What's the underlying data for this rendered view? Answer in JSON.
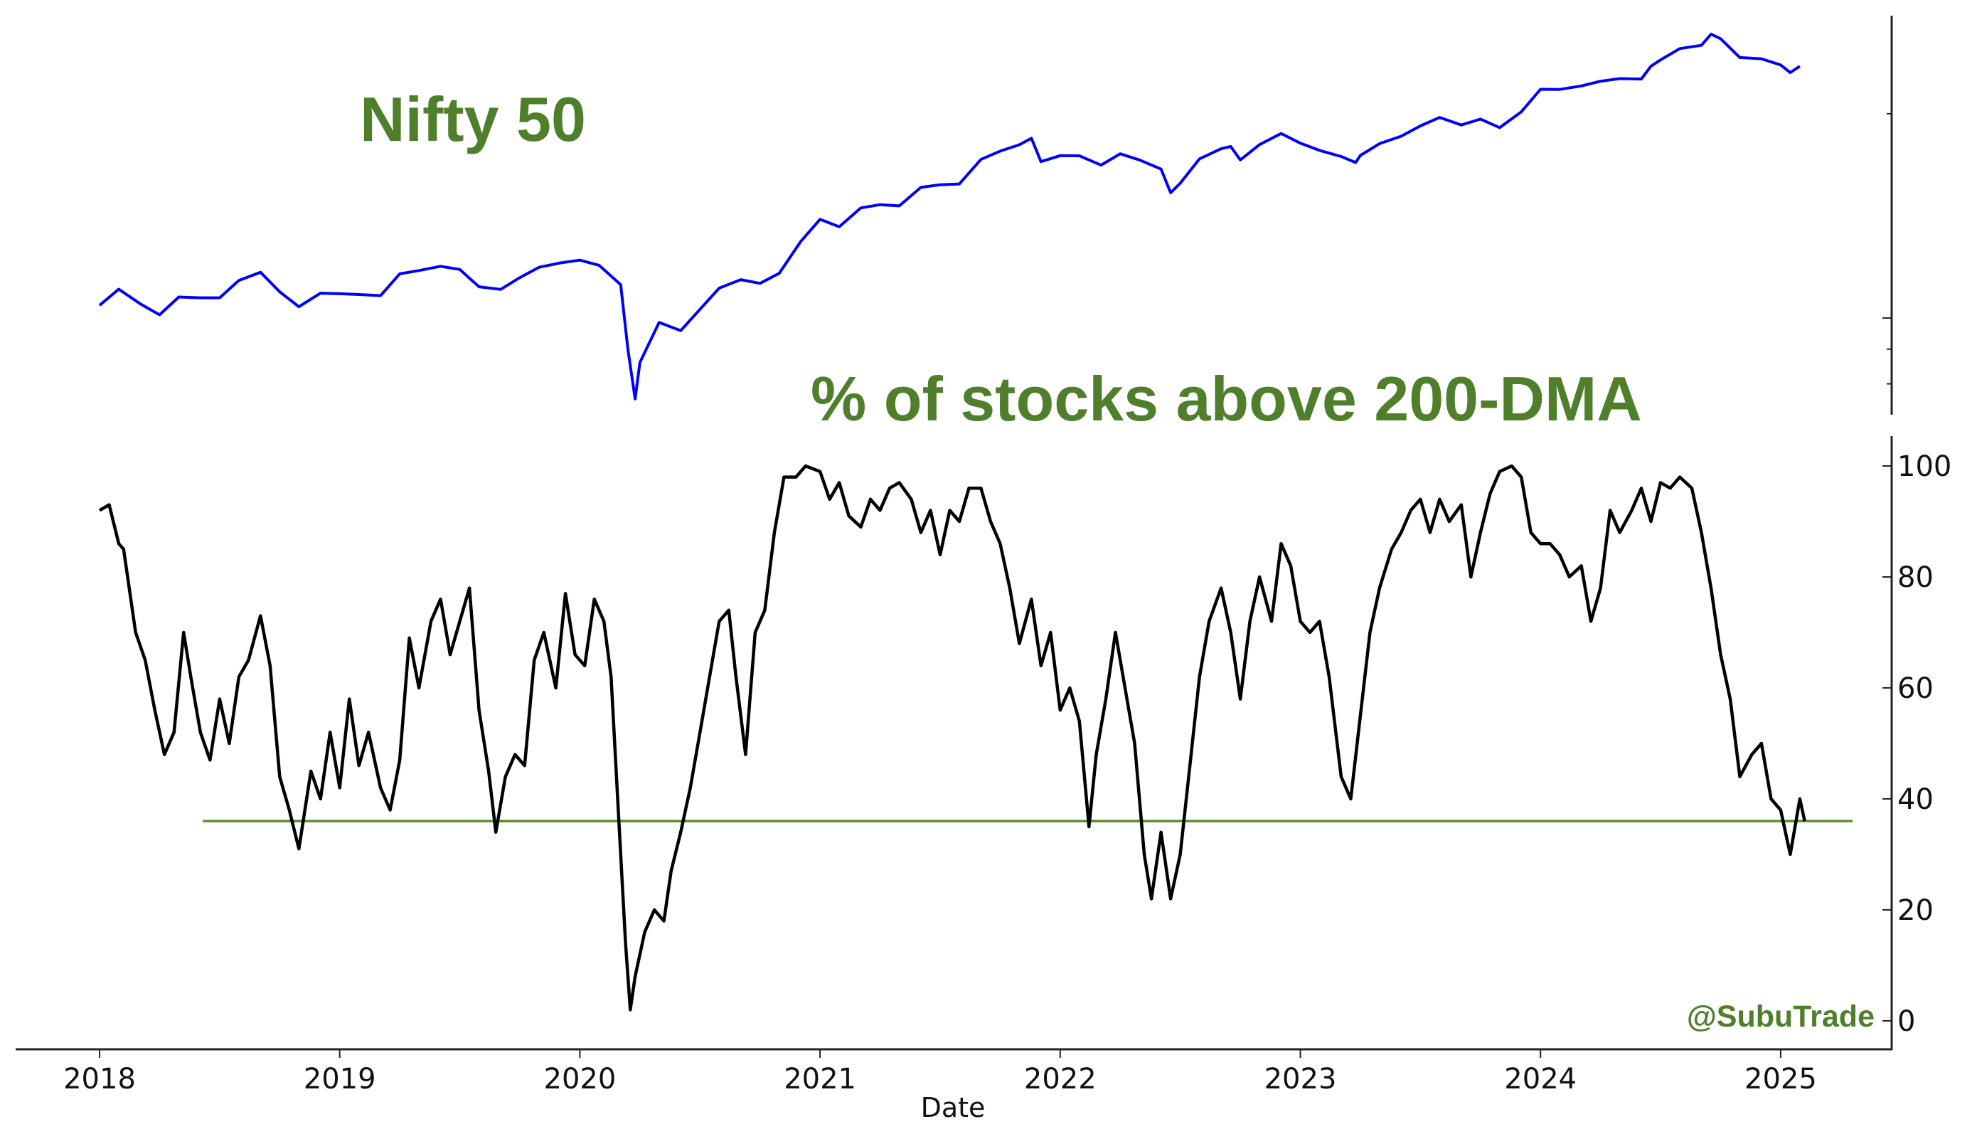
{
  "chart_data": {
    "type": "line",
    "title_top": "Nifty 50",
    "title_bottom": "% of stocks above 200-DMA",
    "watermark": "@SubuTrade",
    "xlabel": "Date",
    "x_ticks": [
      "2018",
      "2019",
      "2020",
      "2021",
      "2022",
      "2023",
      "2024",
      "2025"
    ],
    "top_panel": {
      "yscale": "log",
      "ylim": [
        7000,
        29000
      ],
      "y_tick_values": [
        20000,
        10000,
        9000,
        8000
      ],
      "y_tick_labels_shown": false
    },
    "bottom_panel": {
      "ylim": [
        -5,
        105
      ],
      "y_ticks": [
        "0",
        "20",
        "40",
        "60",
        "80",
        "100"
      ],
      "threshold": 36
    },
    "colors": {
      "nifty": "#0000ff",
      "breadth": "#000000",
      "threshold": "#5a8f29",
      "title": "#4f7f2a"
    },
    "series": [
      {
        "name": "Nifty 50",
        "panel": "top",
        "points": [
          [
            2018.0,
            10440
          ],
          [
            2018.08,
            11030
          ],
          [
            2018.17,
            10490
          ],
          [
            2018.25,
            10110
          ],
          [
            2018.33,
            10740
          ],
          [
            2018.42,
            10710
          ],
          [
            2018.5,
            10710
          ],
          [
            2018.58,
            11360
          ],
          [
            2018.67,
            11680
          ],
          [
            2018.75,
            10930
          ],
          [
            2018.83,
            10390
          ],
          [
            2018.92,
            10880
          ],
          [
            2019.0,
            10860
          ],
          [
            2019.08,
            10830
          ],
          [
            2019.17,
            10790
          ],
          [
            2019.25,
            11620
          ],
          [
            2019.33,
            11750
          ],
          [
            2019.42,
            11920
          ],
          [
            2019.5,
            11790
          ],
          [
            2019.58,
            11120
          ],
          [
            2019.67,
            11020
          ],
          [
            2019.75,
            11470
          ],
          [
            2019.83,
            11880
          ],
          [
            2019.92,
            12060
          ],
          [
            2020.0,
            12170
          ],
          [
            2020.08,
            11960
          ],
          [
            2020.17,
            11200
          ],
          [
            2020.2,
            9000
          ],
          [
            2020.23,
            7600
          ],
          [
            2020.25,
            8600
          ],
          [
            2020.33,
            9850
          ],
          [
            2020.42,
            9580
          ],
          [
            2020.5,
            10300
          ],
          [
            2020.58,
            11070
          ],
          [
            2020.67,
            11390
          ],
          [
            2020.75,
            11250
          ],
          [
            2020.83,
            11640
          ],
          [
            2020.92,
            12970
          ],
          [
            2021.0,
            13980
          ],
          [
            2021.08,
            13630
          ],
          [
            2021.17,
            14530
          ],
          [
            2021.25,
            14690
          ],
          [
            2021.33,
            14630
          ],
          [
            2021.42,
            15580
          ],
          [
            2021.5,
            15720
          ],
          [
            2021.58,
            15760
          ],
          [
            2021.67,
            17130
          ],
          [
            2021.75,
            17620
          ],
          [
            2021.83,
            18000
          ],
          [
            2021.88,
            18400
          ],
          [
            2021.92,
            17000
          ],
          [
            2022.0,
            17350
          ],
          [
            2022.08,
            17340
          ],
          [
            2022.17,
            16800
          ],
          [
            2022.25,
            17460
          ],
          [
            2022.33,
            17100
          ],
          [
            2022.42,
            16580
          ],
          [
            2022.46,
            15300
          ],
          [
            2022.5,
            15800
          ],
          [
            2022.58,
            17160
          ],
          [
            2022.67,
            17760
          ],
          [
            2022.71,
            17900
          ],
          [
            2022.75,
            17100
          ],
          [
            2022.83,
            18010
          ],
          [
            2022.92,
            18700
          ],
          [
            2023.0,
            18100
          ],
          [
            2023.08,
            17660
          ],
          [
            2023.17,
            17300
          ],
          [
            2023.23,
            16950
          ],
          [
            2023.25,
            17360
          ],
          [
            2023.33,
            18070
          ],
          [
            2023.42,
            18530
          ],
          [
            2023.5,
            19190
          ],
          [
            2023.58,
            19750
          ],
          [
            2023.67,
            19250
          ],
          [
            2023.75,
            19640
          ],
          [
            2023.83,
            19080
          ],
          [
            2023.92,
            20130
          ],
          [
            2024.0,
            21730
          ],
          [
            2024.08,
            21720
          ],
          [
            2024.17,
            21980
          ],
          [
            2024.25,
            22330
          ],
          [
            2024.33,
            22530
          ],
          [
            2024.42,
            22500
          ],
          [
            2024.46,
            23500
          ],
          [
            2024.5,
            24010
          ],
          [
            2024.58,
            24950
          ],
          [
            2024.67,
            25230
          ],
          [
            2024.71,
            26200
          ],
          [
            2024.75,
            25800
          ],
          [
            2024.83,
            24200
          ],
          [
            2024.92,
            24100
          ],
          [
            2025.0,
            23600
          ],
          [
            2025.04,
            23000
          ],
          [
            2025.08,
            23500
          ]
        ]
      },
      {
        "name": "% of stocks above 200-DMA",
        "panel": "bottom",
        "points": [
          [
            2018.0,
            92
          ],
          [
            2018.04,
            93
          ],
          [
            2018.08,
            86
          ],
          [
            2018.1,
            85
          ],
          [
            2018.15,
            70
          ],
          [
            2018.19,
            65
          ],
          [
            2018.23,
            56
          ],
          [
            2018.27,
            48
          ],
          [
            2018.31,
            52
          ],
          [
            2018.35,
            70
          ],
          [
            2018.38,
            62
          ],
          [
            2018.42,
            52
          ],
          [
            2018.46,
            47
          ],
          [
            2018.5,
            58
          ],
          [
            2018.54,
            50
          ],
          [
            2018.58,
            62
          ],
          [
            2018.62,
            65
          ],
          [
            2018.67,
            73
          ],
          [
            2018.71,
            64
          ],
          [
            2018.75,
            44
          ],
          [
            2018.79,
            38
          ],
          [
            2018.83,
            31
          ],
          [
            2018.88,
            45
          ],
          [
            2018.92,
            40
          ],
          [
            2018.96,
            52
          ],
          [
            2019.0,
            42
          ],
          [
            2019.04,
            58
          ],
          [
            2019.08,
            46
          ],
          [
            2019.12,
            52
          ],
          [
            2019.17,
            42
          ],
          [
            2019.21,
            38
          ],
          [
            2019.25,
            47
          ],
          [
            2019.29,
            69
          ],
          [
            2019.33,
            60
          ],
          [
            2019.38,
            72
          ],
          [
            2019.42,
            76
          ],
          [
            2019.46,
            66
          ],
          [
            2019.5,
            72
          ],
          [
            2019.54,
            78
          ],
          [
            2019.58,
            56
          ],
          [
            2019.62,
            45
          ],
          [
            2019.65,
            34
          ],
          [
            2019.69,
            44
          ],
          [
            2019.73,
            48
          ],
          [
            2019.77,
            46
          ],
          [
            2019.81,
            65
          ],
          [
            2019.85,
            70
          ],
          [
            2019.9,
            60
          ],
          [
            2019.94,
            77
          ],
          [
            2019.98,
            66
          ],
          [
            2020.02,
            64
          ],
          [
            2020.06,
            76
          ],
          [
            2020.1,
            72
          ],
          [
            2020.13,
            62
          ],
          [
            2020.16,
            38
          ],
          [
            2020.19,
            14
          ],
          [
            2020.21,
            2
          ],
          [
            2020.23,
            8
          ],
          [
            2020.27,
            16
          ],
          [
            2020.31,
            20
          ],
          [
            2020.35,
            18
          ],
          [
            2020.38,
            27
          ],
          [
            2020.42,
            34
          ],
          [
            2020.46,
            42
          ],
          [
            2020.5,
            52
          ],
          [
            2020.54,
            62
          ],
          [
            2020.58,
            72
          ],
          [
            2020.62,
            74
          ],
          [
            2020.65,
            62
          ],
          [
            2020.69,
            48
          ],
          [
            2020.73,
            70
          ],
          [
            2020.77,
            74
          ],
          [
            2020.81,
            88
          ],
          [
            2020.85,
            98
          ],
          [
            2020.9,
            98
          ],
          [
            2020.94,
            100
          ],
          [
            2021.0,
            99
          ],
          [
            2021.04,
            94
          ],
          [
            2021.08,
            97
          ],
          [
            2021.12,
            91
          ],
          [
            2021.17,
            89
          ],
          [
            2021.21,
            94
          ],
          [
            2021.25,
            92
          ],
          [
            2021.29,
            96
          ],
          [
            2021.33,
            97
          ],
          [
            2021.38,
            94
          ],
          [
            2021.42,
            88
          ],
          [
            2021.46,
            92
          ],
          [
            2021.5,
            84
          ],
          [
            2021.54,
            92
          ],
          [
            2021.58,
            90
          ],
          [
            2021.62,
            96
          ],
          [
            2021.67,
            96
          ],
          [
            2021.71,
            90
          ],
          [
            2021.75,
            86
          ],
          [
            2021.79,
            78
          ],
          [
            2021.83,
            68
          ],
          [
            2021.88,
            76
          ],
          [
            2021.92,
            64
          ],
          [
            2021.96,
            70
          ],
          [
            2022.0,
            56
          ],
          [
            2022.04,
            60
          ],
          [
            2022.08,
            54
          ],
          [
            2022.12,
            35
          ],
          [
            2022.15,
            48
          ],
          [
            2022.19,
            58
          ],
          [
            2022.23,
            70
          ],
          [
            2022.27,
            60
          ],
          [
            2022.31,
            50
          ],
          [
            2022.35,
            30
          ],
          [
            2022.38,
            22
          ],
          [
            2022.42,
            34
          ],
          [
            2022.46,
            22
          ],
          [
            2022.5,
            30
          ],
          [
            2022.54,
            46
          ],
          [
            2022.58,
            62
          ],
          [
            2022.62,
            72
          ],
          [
            2022.67,
            78
          ],
          [
            2022.71,
            70
          ],
          [
            2022.75,
            58
          ],
          [
            2022.79,
            72
          ],
          [
            2022.83,
            80
          ],
          [
            2022.88,
            72
          ],
          [
            2022.92,
            86
          ],
          [
            2022.96,
            82
          ],
          [
            2023.0,
            72
          ],
          [
            2023.04,
            70
          ],
          [
            2023.08,
            72
          ],
          [
            2023.12,
            62
          ],
          [
            2023.17,
            44
          ],
          [
            2023.21,
            40
          ],
          [
            2023.25,
            55
          ],
          [
            2023.29,
            70
          ],
          [
            2023.33,
            78
          ],
          [
            2023.38,
            85
          ],
          [
            2023.42,
            88
          ],
          [
            2023.46,
            92
          ],
          [
            2023.5,
            94
          ],
          [
            2023.54,
            88
          ],
          [
            2023.58,
            94
          ],
          [
            2023.62,
            90
          ],
          [
            2023.67,
            93
          ],
          [
            2023.71,
            80
          ],
          [
            2023.75,
            88
          ],
          [
            2023.79,
            95
          ],
          [
            2023.83,
            99
          ],
          [
            2023.88,
            100
          ],
          [
            2023.92,
            98
          ],
          [
            2023.96,
            88
          ],
          [
            2024.0,
            86
          ],
          [
            2024.04,
            86
          ],
          [
            2024.08,
            84
          ],
          [
            2024.12,
            80
          ],
          [
            2024.17,
            82
          ],
          [
            2024.21,
            72
          ],
          [
            2024.25,
            78
          ],
          [
            2024.29,
            92
          ],
          [
            2024.33,
            88
          ],
          [
            2024.38,
            92
          ],
          [
            2024.42,
            96
          ],
          [
            2024.46,
            90
          ],
          [
            2024.5,
            97
          ],
          [
            2024.54,
            96
          ],
          [
            2024.58,
            98
          ],
          [
            2024.63,
            96
          ],
          [
            2024.67,
            88
          ],
          [
            2024.71,
            78
          ],
          [
            2024.75,
            66
          ],
          [
            2024.79,
            58
          ],
          [
            2024.83,
            44
          ],
          [
            2024.88,
            48
          ],
          [
            2024.92,
            50
          ],
          [
            2024.96,
            40
          ],
          [
            2025.0,
            38
          ],
          [
            2025.04,
            30
          ],
          [
            2025.08,
            40
          ],
          [
            2025.1,
            36
          ]
        ]
      }
    ],
    "threshold_line": {
      "value": 36,
      "x_range": [
        2018.43,
        2025.3
      ]
    }
  }
}
